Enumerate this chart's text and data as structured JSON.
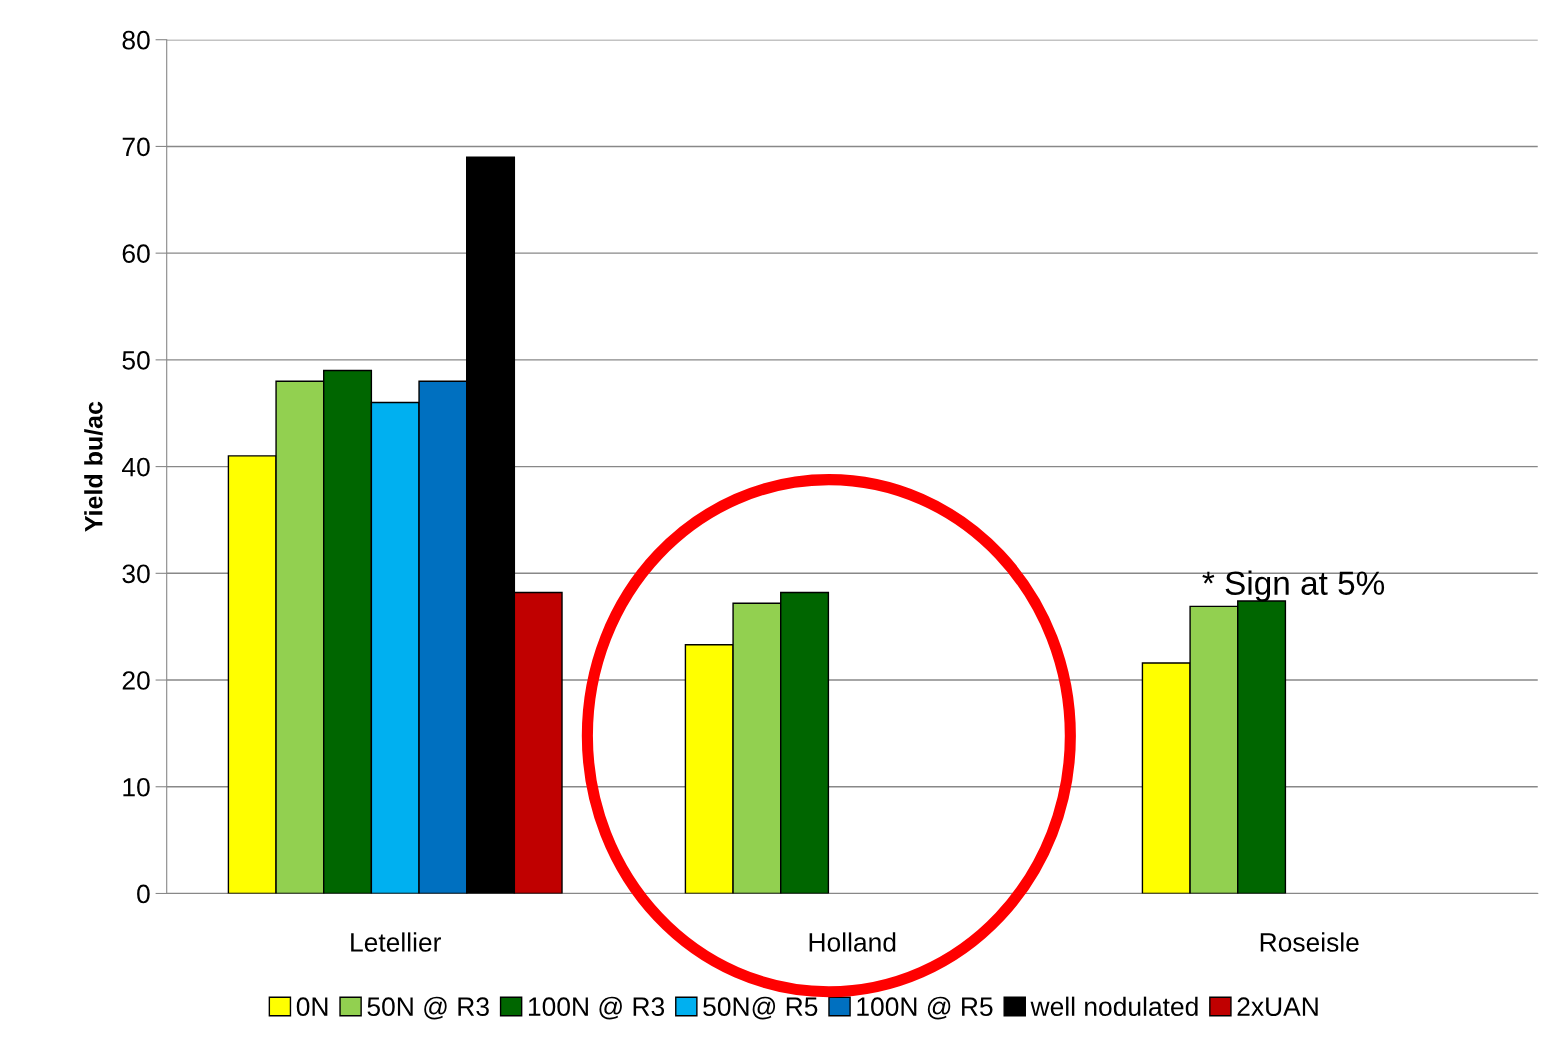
{
  "chart_data": {
    "type": "bar",
    "ylabel": "Yield bu/ac",
    "categories": [
      "Letellier",
      "Holland",
      "Roseisle"
    ],
    "series": [
      {
        "name": "0N",
        "color": "#ffff00",
        "values": [
          41.0,
          23.3,
          21.6
        ]
      },
      {
        "name": "50N @ R3",
        "color": "#92d050",
        "values": [
          48.0,
          27.2,
          26.9
        ]
      },
      {
        "name": "100N @ R3",
        "color": "#006600",
        "values": [
          49.0,
          28.2,
          27.4
        ]
      },
      {
        "name": "50N@ R5",
        "color": "#00b0f0",
        "values": [
          46.0,
          null,
          null
        ]
      },
      {
        "name": "100N @ R5",
        "color": "#0070c0",
        "values": [
          48.0,
          null,
          null
        ]
      },
      {
        "name": "well nodulated",
        "color": "#000000",
        "values": [
          69.0,
          null,
          null
        ]
      },
      {
        "name": "2xUAN",
        "color": "#c00000",
        "values": [
          28.2,
          null,
          null
        ]
      }
    ],
    "ylim": [
      0,
      80
    ],
    "yticks": [
      0,
      10,
      20,
      30,
      40,
      50,
      60,
      70,
      80
    ],
    "grid": "y",
    "legend": "bottom",
    "annotations": [
      "* Sign at 5%"
    ]
  }
}
